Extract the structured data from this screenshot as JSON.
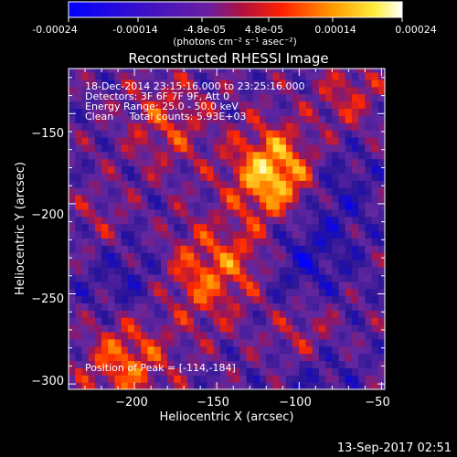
{
  "colorbar": {
    "tick_labels": [
      "-0.00024",
      "-0.00014",
      "-4.8e-05",
      "4.8e-05",
      "0.00014",
      "0.00024"
    ],
    "tick_values": [
      -0.00024,
      -0.00014,
      -4.8e-05,
      4.8e-05,
      0.00014,
      0.00024
    ],
    "range": [
      -0.00024,
      0.00024
    ],
    "units_label": "(photons cm⁻² s⁻¹ asec⁻²)"
  },
  "chart_data": {
    "type": "heatmap",
    "title": "Reconstructed RHESSI Image",
    "xlabel": "Heliocentric X (arcsec)",
    "ylabel": "Heliocentric Y (arcsec)",
    "xlim": [
      -240,
      -48
    ],
    "ylim": [
      -303,
      -125
    ],
    "x_ticks": [
      -200,
      -150,
      -100,
      -50
    ],
    "y_ticks": [
      -300,
      -250,
      -200,
      -150
    ],
    "x_tick_labels": [
      "−200",
      "−150",
      "−100",
      "−50"
    ],
    "y_tick_labels": [
      "−300",
      "−250",
      "−200",
      "−150"
    ],
    "colormap": "blue-purple-red-yellow-white",
    "peak": [
      -114,
      -184
    ],
    "annotations": [
      "18-Dec-2014 23:15:16.000 to 23:25:16.000",
      "Detectors: 3F 6F 7F 9F, Att 0",
      "Energy Range: 25.0 - 50.0 keV",
      "Clean     Total counts: 5.93E+03",
      "Position of Peak = [-114,-184]"
    ]
  },
  "footer": {
    "timestamp": "13-Sep-2017 02:51"
  }
}
